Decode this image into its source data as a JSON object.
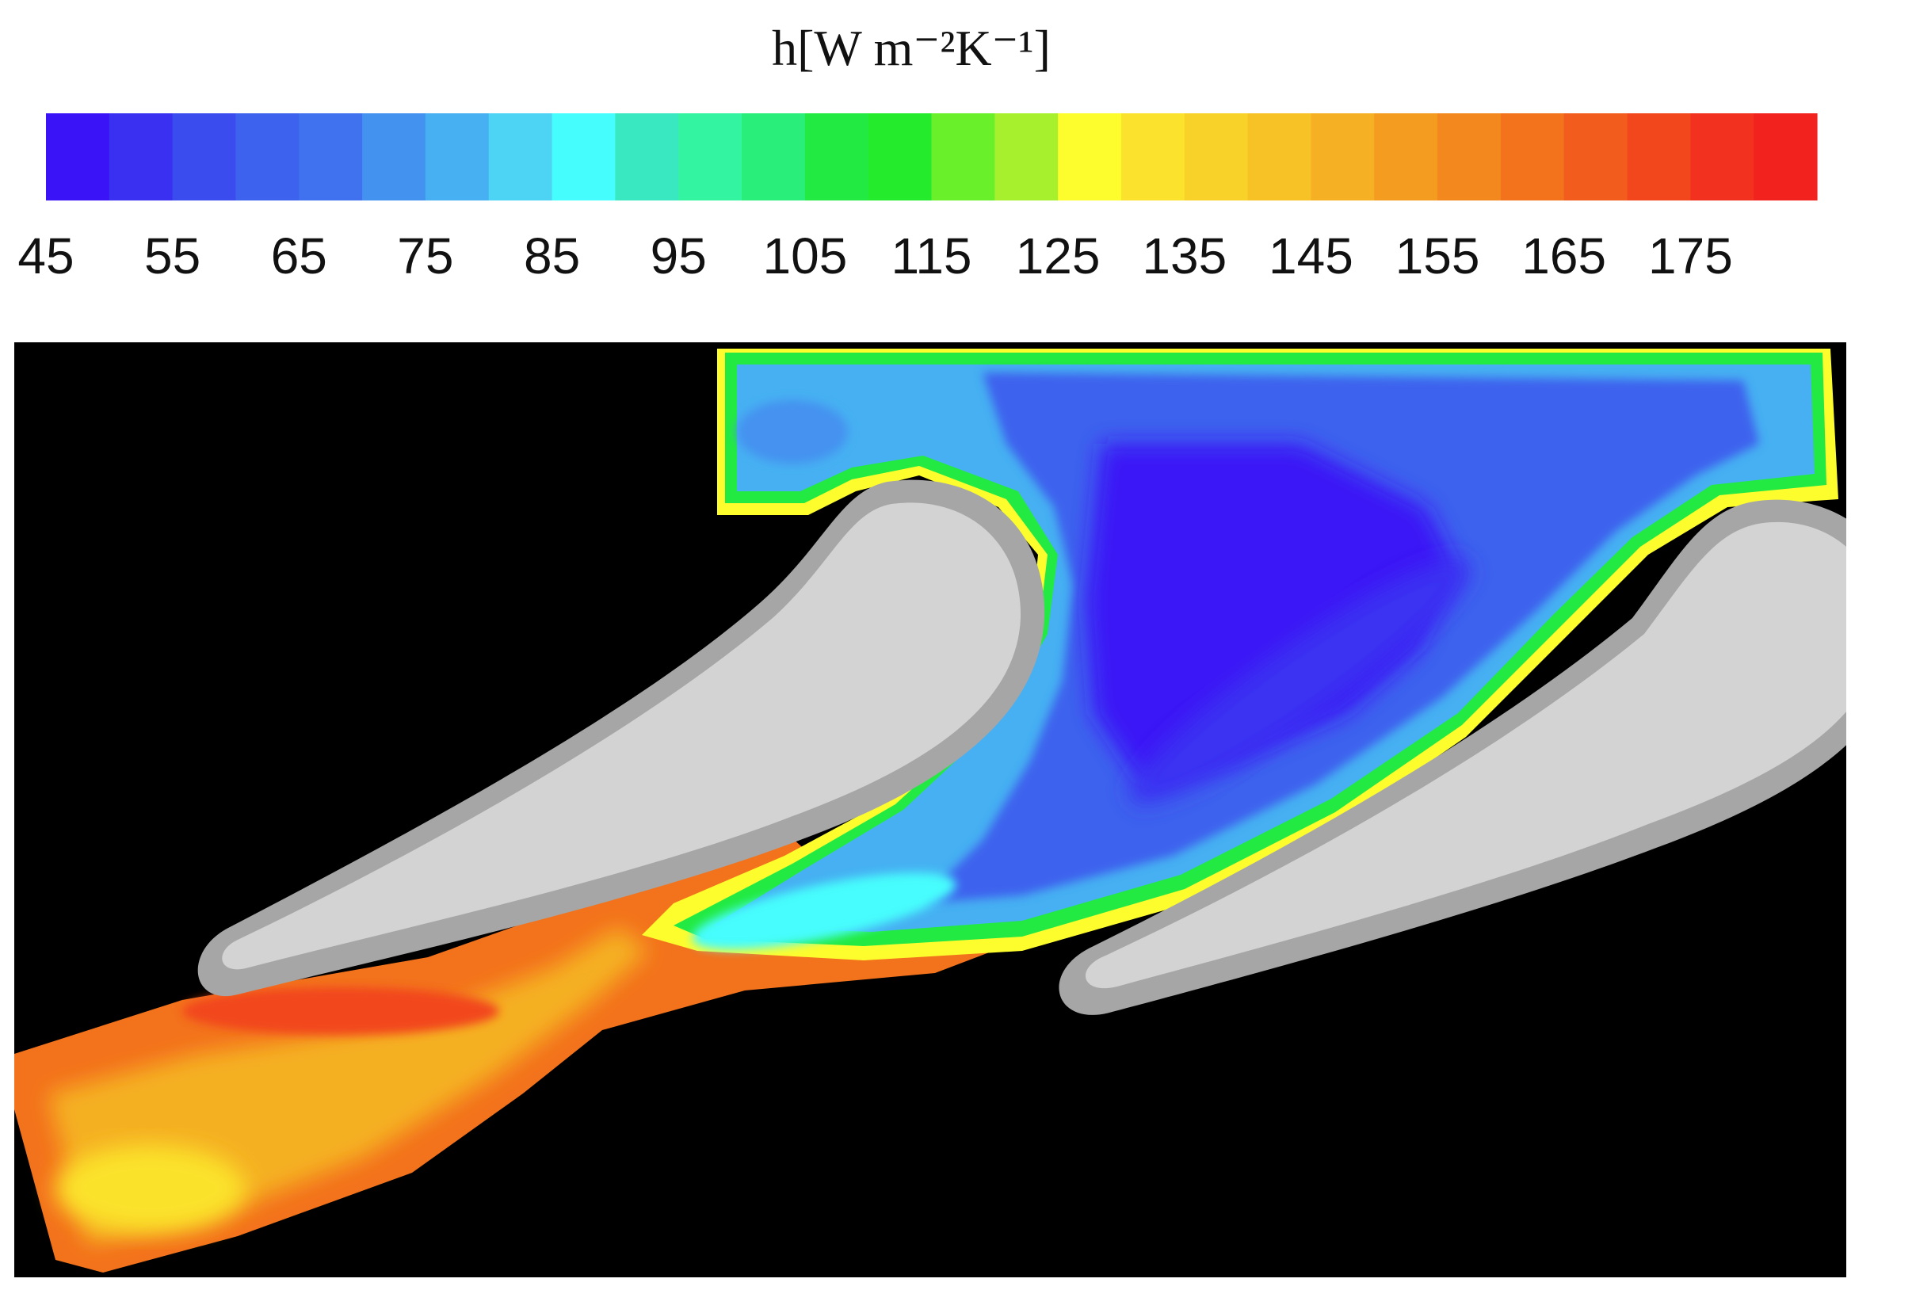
{
  "chart_data": {
    "type": "heatmap",
    "title": "h[W m⁻²K⁻¹]",
    "colorbar": {
      "min": 45,
      "max": 185,
      "ticks": [
        45,
        55,
        65,
        75,
        85,
        95,
        105,
        115,
        125,
        135,
        145,
        155,
        165,
        175
      ],
      "tick_labels": [
        "45",
        "55",
        "65",
        "75",
        "85",
        "95",
        "105",
        "115",
        "125",
        "135",
        "145",
        "155",
        "165",
        "175"
      ],
      "levels": 28,
      "colors": [
        "#3a14f6",
        "#3a30f2",
        "#3b4cee",
        "#3d62ee",
        "#4072ef",
        "#4492f0",
        "#46b0f2",
        "#4dd4f5",
        "#46fdfd",
        "#39e8c0",
        "#33f4a0",
        "#2aee7a",
        "#22ea42",
        "#24ec2c",
        "#6af02a",
        "#a6f02d",
        "#fdfd2e",
        "#fbe22c",
        "#f8d229",
        "#f6c226",
        "#f5b023",
        "#f49c20",
        "#f3881e",
        "#f3721c",
        "#f25c1c",
        "#f2461d",
        "#f2321e",
        "#f2221f"
      ]
    },
    "field_description_colors": {
      "background": "#000000",
      "blade_fill": "#d3d3d3",
      "blade_edge": "#a6a6a6"
    }
  }
}
